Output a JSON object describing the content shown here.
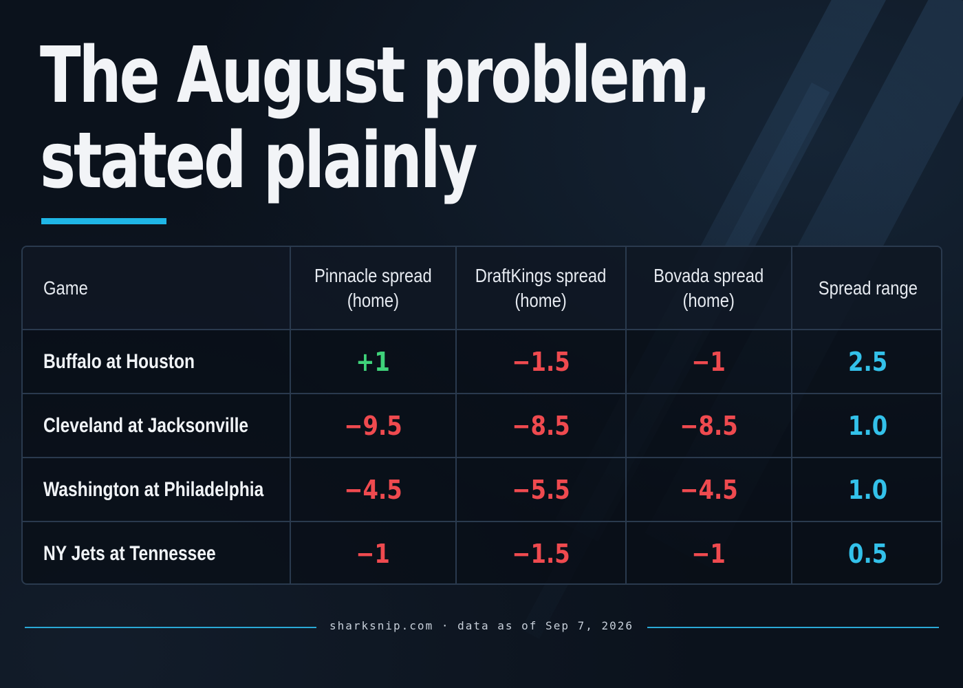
{
  "title": {
    "line1": "The August problem,",
    "line2": "stated plainly"
  },
  "colors": {
    "accent": "#1fb6e6",
    "negative": "#ef4a4f",
    "positive": "#3fd37a",
    "range": "#33c1ea",
    "background": "#0b121c"
  },
  "table": {
    "headers": {
      "game": "Game",
      "pinnacle_l1": "Pinnacle spread",
      "pinnacle_l2": "(home)",
      "draftkings_l1": "DraftKings spread",
      "draftkings_l2": "(home)",
      "bovada_l1": "Bovada spread",
      "bovada_l2": "(home)",
      "range": "Spread range"
    },
    "rows": [
      {
        "game": "Buffalo at Houston",
        "pinnacle": "+1",
        "draftkings": "−1.5",
        "bovada": "−1",
        "range": "2.5"
      },
      {
        "game": "Cleveland at Jacksonville",
        "pinnacle": "−9.5",
        "draftkings": "−8.5",
        "bovada": "−8.5",
        "range": "1.0"
      },
      {
        "game": "Washington at Philadelphia",
        "pinnacle": "−4.5",
        "draftkings": "−5.5",
        "bovada": "−4.5",
        "range": "1.0"
      },
      {
        "game": "NY Jets at Tennessee",
        "pinnacle": "−1",
        "draftkings": "−1.5",
        "bovada": "−1",
        "range": "0.5"
      }
    ]
  },
  "footer": {
    "text": "sharksnip.com · data as of Sep 7, 2026"
  }
}
